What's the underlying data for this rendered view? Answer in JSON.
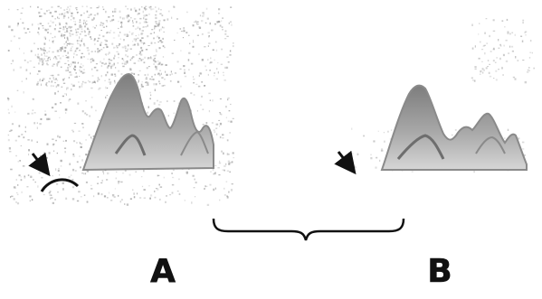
{
  "panels": {
    "a": {
      "label": "A"
    },
    "b": {
      "label": "B"
    }
  },
  "icons": {
    "arrow_a": "arrow-down-right-icon",
    "arrow_b": "arrow-down-right-icon"
  },
  "colors": {
    "background": "#ffffff",
    "ink": "#111111",
    "spectrum_gray": "#8a8a8a",
    "speckle": "#9a9a9a"
  }
}
